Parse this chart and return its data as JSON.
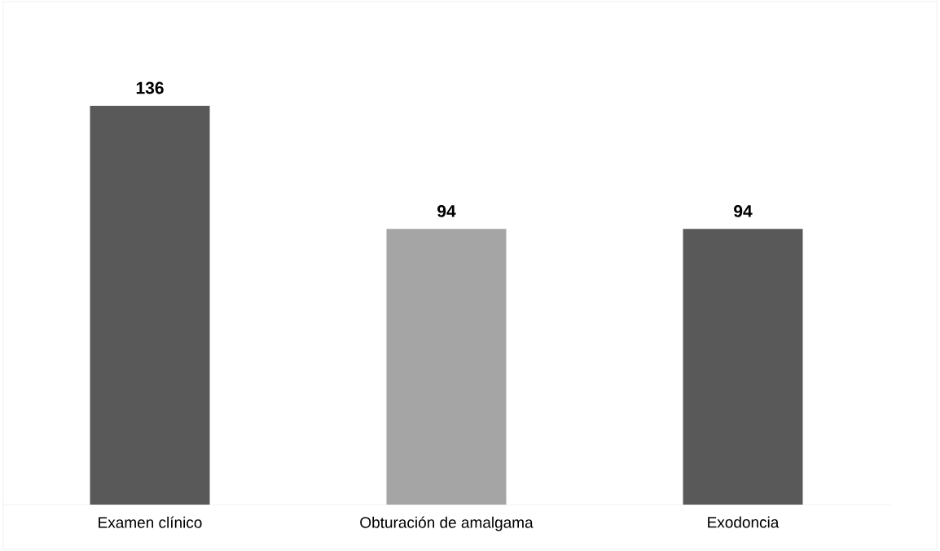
{
  "chart_data": {
    "type": "bar",
    "categories": [
      "Examen clínico",
      "Obturación de amalgama",
      "Exodoncia"
    ],
    "values": [
      136,
      94,
      94
    ],
    "colors": [
      "#595959",
      "#a5a5a5",
      "#595959"
    ],
    "data_labels": true
  }
}
